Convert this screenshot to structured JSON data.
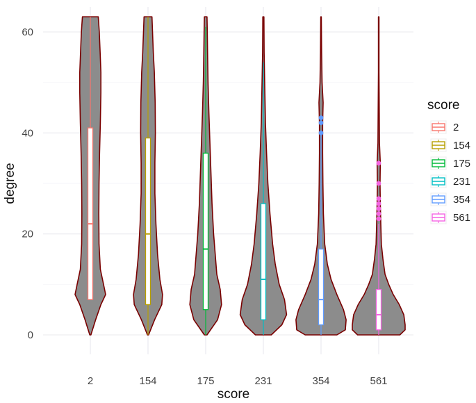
{
  "chart_data": {
    "type": "violin",
    "title": "",
    "xlabel": "score",
    "ylabel": "degree",
    "ylim": [
      -4,
      66
    ],
    "y_ticks": [
      0,
      20,
      40,
      60
    ],
    "grid": true,
    "legend": {
      "title": "score",
      "position": "right"
    },
    "violin_fill": "#8c8c8c",
    "violin_stroke": "#7a0000",
    "categories": [
      "2",
      "154",
      "175",
      "231",
      "354",
      "561"
    ],
    "series": [
      {
        "name": "2",
        "color": "#f8766d",
        "box": {
          "min": 7,
          "q1": 7,
          "median": 22,
          "q3": 41,
          "max": 63
        },
        "outliers": [],
        "density": [
          [
            0,
            0.02
          ],
          [
            3,
            0.2
          ],
          [
            6,
            0.4
          ],
          [
            8,
            0.58
          ],
          [
            10,
            0.5
          ],
          [
            13,
            0.38
          ],
          [
            18,
            0.33
          ],
          [
            24,
            0.32
          ],
          [
            30,
            0.33
          ],
          [
            36,
            0.35
          ],
          [
            42,
            0.38
          ],
          [
            48,
            0.4
          ],
          [
            52,
            0.4
          ],
          [
            56,
            0.37
          ],
          [
            60,
            0.34
          ],
          [
            63,
            0.3
          ]
        ]
      },
      {
        "name": "154",
        "color": "#b79f00",
        "box": {
          "min": 0,
          "q1": 6,
          "median": 20,
          "q3": 39,
          "max": 63
        },
        "outliers": [],
        "density": [
          [
            0,
            0.02
          ],
          [
            3,
            0.25
          ],
          [
            6,
            0.52
          ],
          [
            8,
            0.55
          ],
          [
            11,
            0.45
          ],
          [
            16,
            0.36
          ],
          [
            22,
            0.3
          ],
          [
            28,
            0.26
          ],
          [
            34,
            0.26
          ],
          [
            40,
            0.28
          ],
          [
            46,
            0.27
          ],
          [
            52,
            0.24
          ],
          [
            56,
            0.2
          ],
          [
            60,
            0.17
          ],
          [
            63,
            0.15
          ]
        ]
      },
      {
        "name": "175",
        "color": "#00ba38",
        "box": {
          "min": 0,
          "q1": 5,
          "median": 17,
          "q3": 36,
          "max": 61
        },
        "outliers": [],
        "density": [
          [
            0,
            0.05
          ],
          [
            3,
            0.45
          ],
          [
            6,
            0.6
          ],
          [
            9,
            0.55
          ],
          [
            12,
            0.42
          ],
          [
            16,
            0.36
          ],
          [
            20,
            0.3
          ],
          [
            26,
            0.24
          ],
          [
            32,
            0.2
          ],
          [
            38,
            0.16
          ],
          [
            44,
            0.12
          ],
          [
            50,
            0.09
          ],
          [
            56,
            0.07
          ],
          [
            60,
            0.06
          ],
          [
            63,
            0.05
          ]
        ]
      },
      {
        "name": "231",
        "color": "#00bfc4",
        "box": {
          "min": 0,
          "q1": 3,
          "median": 11,
          "q3": 26,
          "max": 54
        },
        "outliers": [],
        "density": [
          [
            0,
            0.3
          ],
          [
            2,
            0.7
          ],
          [
            4,
            0.88
          ],
          [
            7,
            0.8
          ],
          [
            10,
            0.6
          ],
          [
            14,
            0.45
          ],
          [
            18,
            0.35
          ],
          [
            24,
            0.25
          ],
          [
            30,
            0.17
          ],
          [
            36,
            0.12
          ],
          [
            42,
            0.08
          ],
          [
            50,
            0.05
          ],
          [
            56,
            0.03
          ],
          [
            63,
            0.02
          ]
        ]
      },
      {
        "name": "354",
        "color": "#619cff",
        "box": {
          "min": 0,
          "q1": 2,
          "median": 7,
          "q3": 17,
          "max": 40
        },
        "outliers": [
          40,
          42,
          43
        ],
        "density": [
          [
            0,
            0.6
          ],
          [
            1,
            0.92
          ],
          [
            3,
            0.95
          ],
          [
            5,
            0.85
          ],
          [
            8,
            0.6
          ],
          [
            11,
            0.38
          ],
          [
            14,
            0.24
          ],
          [
            18,
            0.14
          ],
          [
            24,
            0.09
          ],
          [
            30,
            0.07
          ],
          [
            36,
            0.06
          ],
          [
            42,
            0.06
          ],
          [
            46,
            0.08
          ],
          [
            50,
            0.04
          ],
          [
            56,
            0.02
          ],
          [
            63,
            0.01
          ]
        ]
      },
      {
        "name": "561",
        "color": "#f564e3",
        "box": {
          "min": 0,
          "q1": 1,
          "median": 4,
          "q3": 9,
          "max": 22
        },
        "outliers": [
          23,
          24,
          25,
          26,
          27,
          30,
          34
        ],
        "density": [
          [
            0,
            0.8
          ],
          [
            1,
            1.0
          ],
          [
            2,
            1.0
          ],
          [
            4,
            0.95
          ],
          [
            6,
            0.78
          ],
          [
            8,
            0.55
          ],
          [
            10,
            0.38
          ],
          [
            12,
            0.24
          ],
          [
            15,
            0.16
          ],
          [
            18,
            0.1
          ],
          [
            22,
            0.08
          ],
          [
            26,
            0.06
          ],
          [
            30,
            0.05
          ],
          [
            34,
            0.06
          ],
          [
            38,
            0.03
          ],
          [
            44,
            0.02
          ],
          [
            52,
            0.01
          ],
          [
            63,
            0.01
          ]
        ]
      }
    ]
  }
}
